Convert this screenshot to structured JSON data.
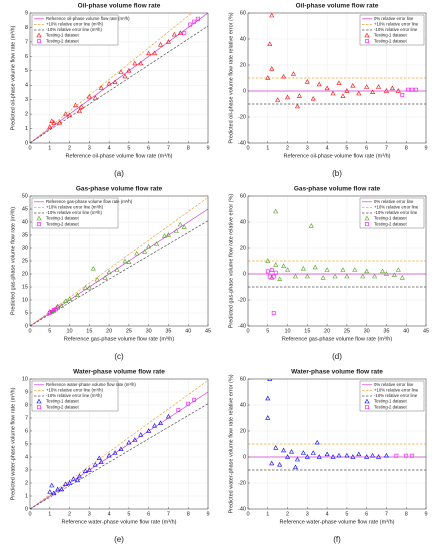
{
  "chart_data": [
    {
      "type": "scatter",
      "title": "Oil-phase volume flow rate",
      "caption": "(a)",
      "x_label": "Reference oil-phase volume flow rate (m³/h)",
      "y_label": "Predicted oil-phase volume flow rate (m³/h)",
      "xlim": [
        0,
        9
      ],
      "xticks": [
        0,
        1,
        2,
        3,
        4,
        5,
        6,
        7,
        8,
        9
      ],
      "ylim": [
        0,
        9
      ],
      "yticks": [
        0,
        1,
        2,
        3,
        4,
        5,
        6,
        7,
        8,
        9
      ],
      "grid": true,
      "legend": "upper-left",
      "ref_lines": [
        {
          "name": "Reference oil-phase volume flow rate (m³/h)",
          "color": "#d63ad6",
          "slope": 1,
          "dash": false
        },
        {
          "name": "+10% relative error line (m³/h)",
          "color": "#f0a640",
          "slope": 1.1,
          "dash": true
        },
        {
          "name": "-10% relative error line (m³/h)",
          "color": "#555555",
          "slope": 0.9,
          "dash": true
        }
      ],
      "series": [
        {
          "name": "Testing-1 dataset",
          "color": "#ff0000",
          "marker": "triangle",
          "x": [
            1,
            1.2,
            1.5,
            1.8,
            2,
            2.3,
            2.6,
            3,
            3.3,
            3.6,
            4,
            4.3,
            4.6,
            5,
            5.3,
            5.6,
            6,
            6.3,
            6.6,
            7,
            7.3,
            7.6,
            1.1,
            2.5,
            4.8
          ],
          "y": [
            1.1,
            1.4,
            1.4,
            2,
            1.9,
            2.6,
            2.5,
            3.2,
            3.1,
            3.8,
            4.1,
            4.2,
            4.9,
            5,
            5.5,
            5.5,
            6.2,
            6.2,
            6.8,
            7,
            7.5,
            7.6,
            1.5,
            2.2,
            4.6
          ]
        },
        {
          "name": "Testing-2 dataset",
          "color": "#ff00ff",
          "marker": "square",
          "x": [
            7.8,
            8.1,
            8.3,
            8.5
          ],
          "y": [
            7.6,
            8.2,
            8.4,
            8.6
          ]
        }
      ]
    },
    {
      "type": "scatter",
      "title": "Oil-phase volume flow rate",
      "caption": "(b)",
      "x_label": "Reference oil-phase volume flow rate (m³/h)",
      "y_label": "Predicted oil-phase volume flow rate relative error (%)",
      "xlim": [
        0,
        9
      ],
      "xticks": [
        0,
        1,
        2,
        3,
        4,
        5,
        6,
        7,
        8,
        9
      ],
      "ylim": [
        -40,
        60
      ],
      "yticks": [
        -40,
        -20,
        0,
        20,
        40,
        60
      ],
      "grid": true,
      "legend": "upper-right",
      "ref_lines": [
        {
          "name": "0% relative error line",
          "color": "#d63ad6",
          "offset": 0,
          "dash": false
        },
        {
          "name": "+10% relative error line",
          "color": "#f0a640",
          "offset": 10,
          "dash": true
        },
        {
          "name": "-10% relative error line",
          "color": "#555555",
          "offset": -10,
          "dash": true
        }
      ],
      "series": [
        {
          "name": "Testing-1 dataset",
          "color": "#ff0000",
          "marker": "triangle",
          "x": [
            1,
            1.2,
            1.5,
            1.8,
            2,
            2.3,
            2.6,
            3,
            3.3,
            3.6,
            4,
            4.3,
            4.6,
            5,
            5.3,
            5.6,
            6,
            6.3,
            6.6,
            7,
            7.3,
            7.6,
            1.1,
            2.5,
            4.8,
            1.2
          ],
          "y": [
            10,
            17,
            -7,
            11,
            -5,
            13,
            -4,
            7,
            -6,
            5,
            2,
            -2,
            6,
            0,
            4,
            -2,
            3,
            -1,
            3,
            0,
            2,
            0,
            36,
            -12,
            -4,
            58
          ]
        },
        {
          "name": "Testing-2 dataset",
          "color": "#ff00ff",
          "marker": "square",
          "x": [
            7.8,
            8.1,
            8.3,
            8.5
          ],
          "y": [
            -3,
            1,
            1,
            1
          ]
        }
      ]
    },
    {
      "type": "scatter",
      "title": "Gas-phase volume flow rate",
      "caption": "(c)",
      "x_label": "Reference gas-phase volume flow rate (m³/h)",
      "y_label": "Predicted gas-phase volume flow rate (m³/h)",
      "xlim": [
        0,
        45
      ],
      "xticks": [
        0,
        5,
        10,
        15,
        20,
        25,
        30,
        35,
        40,
        45
      ],
      "ylim": [
        0,
        50
      ],
      "yticks": [
        0,
        5,
        10,
        15,
        20,
        25,
        30,
        35,
        40,
        45,
        50
      ],
      "grid": true,
      "legend": "upper-left",
      "ref_lines": [
        {
          "name": "Reference gas-phase volume flow rate (m³/h)",
          "color": "#d63ad6",
          "slope": 1,
          "dash": false
        },
        {
          "name": "+10% relative error line (m³/h)",
          "color": "#f0a640",
          "slope": 1.1,
          "dash": true
        },
        {
          "name": "-10% relative error line (m³/h)",
          "color": "#555555",
          "slope": 0.9,
          "dash": true
        }
      ],
      "series": [
        {
          "name": "Testing-1 dataset",
          "color": "#55a020",
          "marker": "triangle",
          "x": [
            5,
            6,
            7,
            8,
            9,
            10,
            12,
            14,
            15,
            17,
            19,
            20,
            22,
            24,
            25,
            27,
            29,
            30,
            32,
            34,
            35,
            37,
            38,
            39,
            16
          ],
          "y": [
            5.5,
            5.8,
            7.5,
            7.7,
            9.5,
            10.3,
            11.8,
            14.6,
            14.7,
            17.8,
            18.5,
            20.6,
            21.5,
            24.8,
            24.5,
            27.8,
            28.5,
            30.5,
            31.5,
            34.6,
            35,
            36.5,
            39,
            38,
            22
          ]
        },
        {
          "name": "Testing-2 dataset",
          "color": "#ff00ff",
          "marker": "square",
          "x": [
            5,
            5.5,
            6,
            6.5,
            7
          ],
          "y": [
            5.1,
            5.4,
            6.2,
            6.4,
            7.1
          ]
        }
      ]
    },
    {
      "type": "scatter",
      "title": "Gas-phase volume flow rate",
      "caption": "(d)",
      "x_label": "Reference gas-phase volume flow rate (m³/h)",
      "y_label": "Predicted gas-phase volume flow rate relative error (%)",
      "xlim": [
        0,
        45
      ],
      "xticks": [
        0,
        5,
        10,
        15,
        20,
        25,
        30,
        35,
        40,
        45
      ],
      "ylim": [
        -40,
        60
      ],
      "yticks": [
        -40,
        -20,
        0,
        20,
        40,
        60
      ],
      "grid": true,
      "legend": "upper-right",
      "ref_lines": [
        {
          "name": "0% relative error line",
          "color": "#d63ad6",
          "offset": 0,
          "dash": false
        },
        {
          "name": "+10% relative error line",
          "color": "#f0a640",
          "offset": 10,
          "dash": true
        },
        {
          "name": "-10% relative error line",
          "color": "#555555",
          "offset": -10,
          "dash": true
        }
      ],
      "series": [
        {
          "name": "Testing-1 dataset",
          "color": "#55a020",
          "marker": "triangle",
          "x": [
            5,
            6,
            7,
            8,
            9,
            10,
            12,
            14,
            15,
            17,
            19,
            20,
            22,
            24,
            25,
            27,
            29,
            30,
            32,
            34,
            35,
            37,
            38,
            39,
            16,
            7
          ],
          "y": [
            10,
            -3,
            7,
            -4,
            6,
            3,
            -2,
            4,
            -2,
            5,
            -3,
            3,
            -2,
            3,
            -2,
            3,
            -2,
            2,
            -2,
            2,
            0,
            -1,
            3,
            -3,
            37,
            48
          ]
        },
        {
          "name": "Testing-2 dataset",
          "color": "#ff00ff",
          "marker": "square",
          "x": [
            5,
            5.5,
            6,
            6.5,
            7,
            6.5
          ],
          "y": [
            2,
            -2,
            3,
            -2,
            1,
            -30
          ]
        }
      ]
    },
    {
      "type": "scatter",
      "title": "Water-phase volume flow rate",
      "caption": "(e)",
      "x_label": "Reference water-phase volume flow rate (m³/h)",
      "y_label": "Predicted water-phase volume flow rate (m³/h)",
      "xlim": [
        0,
        9
      ],
      "xticks": [
        0,
        1,
        2,
        3,
        4,
        5,
        6,
        7,
        8,
        9
      ],
      "ylim": [
        0,
        10
      ],
      "yticks": [
        0,
        1,
        2,
        3,
        4,
        5,
        6,
        7,
        8,
        9,
        10
      ],
      "grid": true,
      "legend": "upper-left",
      "ref_lines": [
        {
          "name": "Reference water-phase volume flow rate (m³/h)",
          "color": "#d63ad6",
          "slope": 1,
          "dash": false
        },
        {
          "name": "+10% relative error line (m³/h)",
          "color": "#f0a640",
          "slope": 1.1,
          "dash": true
        },
        {
          "name": "-10% relative error line (m³/h)",
          "color": "#555555",
          "slope": 0.9,
          "dash": true
        }
      ],
      "series": [
        {
          "name": "Testing-1 dataset",
          "color": "#0000ff",
          "marker": "triangle",
          "x": [
            1,
            1.2,
            1.4,
            1.6,
            1.8,
            2,
            2.2,
            2.5,
            2.8,
            3,
            3.3,
            3.6,
            4,
            4.3,
            4.6,
            5,
            5.3,
            5.6,
            6,
            6.3,
            6.6,
            7,
            1.1,
            2.4,
            3.5
          ],
          "y": [
            1.3,
            1.2,
            1.5,
            1.5,
            1.9,
            2,
            2.3,
            2.5,
            2.9,
            3,
            3.4,
            3.6,
            4.1,
            4.3,
            4.6,
            5.1,
            5.3,
            5.7,
            6,
            6.4,
            6.6,
            7.1,
            1.8,
            2.2,
            3.9
          ]
        },
        {
          "name": "Testing-2 dataset",
          "color": "#ff00ff",
          "marker": "square",
          "x": [
            7.5,
            8,
            8.3
          ],
          "y": [
            7.6,
            8.1,
            8.4
          ]
        }
      ]
    },
    {
      "type": "scatter",
      "title": "Water-phase volume flow rate",
      "caption": "(f)",
      "x_label": "Reference water-phase volume flow rate (m³/h)",
      "y_label": "Predicted water-phase volume flow rate relative error (%)",
      "xlim": [
        0,
        9
      ],
      "xticks": [
        0,
        1,
        2,
        3,
        4,
        5,
        6,
        7,
        8,
        9
      ],
      "ylim": [
        -40,
        60
      ],
      "yticks": [
        -40,
        -20,
        0,
        20,
        40,
        60
      ],
      "grid": true,
      "legend": "upper-right",
      "ref_lines": [
        {
          "name": "0% relative error line",
          "color": "#d63ad6",
          "offset": 0,
          "dash": false
        },
        {
          "name": "+10% relative error line",
          "color": "#f0a640",
          "offset": 10,
          "dash": true
        },
        {
          "name": "-10% relative error line",
          "color": "#555555",
          "offset": -10,
          "dash": true
        }
      ],
      "series": [
        {
          "name": "Testing-1 dataset",
          "color": "#0000ff",
          "marker": "triangle",
          "x": [
            1,
            1.2,
            1.4,
            1.6,
            1.8,
            2,
            2.2,
            2.5,
            2.8,
            3,
            3.3,
            3.6,
            4,
            4.3,
            4.6,
            5,
            5.3,
            5.6,
            6,
            6.3,
            6.6,
            7,
            1.1,
            2.4,
            3.5,
            1
          ],
          "y": [
            30,
            -5,
            7,
            -6,
            5,
            0,
            4,
            -2,
            3,
            0,
            3,
            0,
            2,
            0,
            1,
            1,
            0,
            2,
            0,
            1,
            0,
            1,
            60,
            -8,
            11,
            45
          ]
        },
        {
          "name": "Testing-2 dataset",
          "color": "#ff00ff",
          "marker": "square",
          "x": [
            7.5,
            8,
            8.3
          ],
          "y": [
            1,
            1,
            1
          ]
        }
      ]
    }
  ]
}
